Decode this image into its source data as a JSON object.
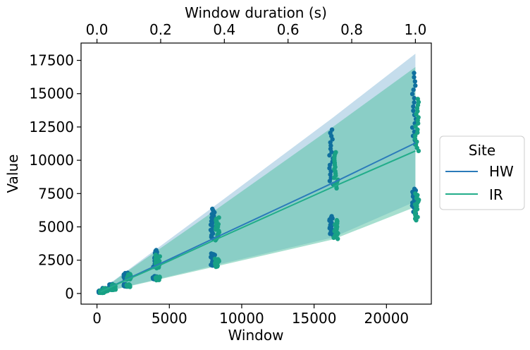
{
  "chart_data": {
    "type": "scatter",
    "xlabel": "Window",
    "ylabel": "Value",
    "x2label": "Window duration (s)",
    "xlim": [
      -1100,
      23100
    ],
    "ylim": [
      -800,
      18800
    ],
    "x2lim": [
      -0.05,
      1.05
    ],
    "xticks": [
      0,
      5000,
      10000,
      15000,
      20000
    ],
    "xtick_labels": [
      "0",
      "5000",
      "10000",
      "15000",
      "20000"
    ],
    "yticks": [
      0,
      2500,
      5000,
      7500,
      10000,
      12500,
      15000,
      17500
    ],
    "ytick_labels": [
      "0",
      "2500",
      "5000",
      "7500",
      "10000",
      "12500",
      "15000",
      "17500"
    ],
    "x2ticks": [
      0.0,
      0.2,
      0.4,
      0.6,
      0.8,
      1.0
    ],
    "x2tick_labels": [
      "0.0",
      "0.2",
      "0.4",
      "0.6",
      "0.8",
      "1.0"
    ],
    "legend": {
      "title": "Site",
      "placement": "center-right-outside"
    },
    "grid": false,
    "series": [
      {
        "name": "HW",
        "color": "#2b7bba",
        "point_color": "#0f6f9e",
        "band_color": "#7fb3d5",
        "x": [
          250,
          500,
          1000,
          2000,
          4000,
          8100,
          16300,
          22000
        ],
        "mean": [
          130,
          260,
          520,
          1050,
          2050,
          4150,
          8300,
          11300
        ],
        "band_low": [
          60,
          120,
          250,
          520,
          1020,
          2100,
          4200,
          6900
        ],
        "band_high": [
          210,
          420,
          840,
          1650,
          3250,
          6550,
          13200,
          18000
        ],
        "point_ranges": [
          {
            "x": 250,
            "low": [
              60,
              100
            ],
            "high": [
              150,
              210
            ]
          },
          {
            "x": 500,
            "low": [
              160,
              240
            ],
            "high": [
              300,
              400
            ]
          },
          {
            "x": 1000,
            "low": [
              280,
              380
            ],
            "high": [
              500,
              700
            ]
          },
          {
            "x": 2000,
            "low": [
              520,
              700
            ],
            "high": [
              1100,
              1550
            ]
          },
          {
            "x": 4000,
            "low": [
              1050,
              1300
            ],
            "high": [
              2000,
              3250
            ]
          },
          {
            "x": 8000,
            "low": [
              2100,
              3000
            ],
            "high": [
              4100,
              6350
            ]
          },
          {
            "x": 16200,
            "low": [
              4400,
              5800
            ],
            "high": [
              8200,
              12300
            ]
          },
          {
            "x": 21900,
            "low": [
              5900,
              7850
            ],
            "high": [
              11200,
              16550
            ]
          }
        ]
      },
      {
        "name": "IR",
        "color": "#22ad8a",
        "point_color": "#18a185",
        "band_color": "#4fbfa0",
        "x": [
          250,
          500,
          1000,
          2000,
          4000,
          8100,
          16300,
          22000
        ],
        "mean": [
          125,
          250,
          500,
          1000,
          1950,
          4000,
          8000,
          10700
        ],
        "band_low": [
          55,
          110,
          230,
          480,
          980,
          2000,
          4050,
          6500
        ],
        "band_high": [
          200,
          400,
          800,
          1600,
          3100,
          6200,
          12500,
          17000
        ],
        "point_ranges": [
          {
            "x": 350,
            "low": [
              50,
              90
            ],
            "high": [
              140,
              200
            ]
          },
          {
            "x": 600,
            "low": [
              150,
              230
            ],
            "high": [
              290,
              380
            ]
          },
          {
            "x": 1150,
            "low": [
              270,
              360
            ],
            "high": [
              480,
              650
            ]
          },
          {
            "x": 2200,
            "low": [
              500,
              680
            ],
            "high": [
              1050,
              1450
            ]
          },
          {
            "x": 4200,
            "low": [
              1000,
              1250
            ],
            "high": [
              1900,
              2900
            ]
          },
          {
            "x": 8300,
            "low": [
              2000,
              2600
            ],
            "high": [
              4000,
              5700
            ]
          },
          {
            "x": 16500,
            "low": [
              4100,
              5500
            ],
            "high": [
              7900,
              10600
            ]
          },
          {
            "x": 22100,
            "low": [
              5500,
              7500
            ],
            "high": [
              10700,
              14600
            ]
          }
        ]
      }
    ]
  }
}
